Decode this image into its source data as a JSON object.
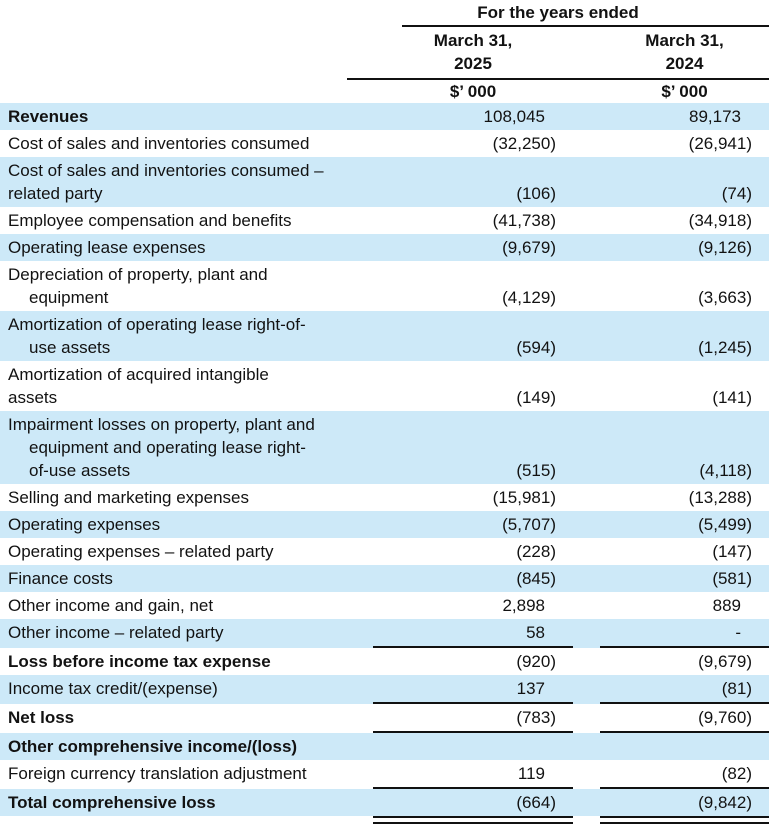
{
  "header": {
    "years_ended": "For the years ended",
    "col1_date": "March 31,\n2025",
    "col2_date": "March 31,\n2024",
    "col1_units": "$’ 000",
    "col2_units": "$’ 000"
  },
  "colors": {
    "row_shade_blue": "#cde9f8",
    "rule_black": "#111111",
    "text": "#121212"
  },
  "rows": [
    {
      "label": "Revenues",
      "v2025": "108,045",
      "v2024": "89,173"
    },
    {
      "label": "Cost of sales and inventories consumed",
      "v2025": "(32,250)",
      "v2024": "(26,941)"
    },
    {
      "label": "Cost of sales and inventories consumed –\nrelated party",
      "v2025": "(106)",
      "v2024": "(74)"
    },
    {
      "label": "Employee compensation and benefits",
      "v2025": "(41,738)",
      "v2024": "(34,918)"
    },
    {
      "label": "Operating lease expenses",
      "v2025": "(9,679)",
      "v2024": "(9,126)"
    },
    {
      "label": "Depreciation of property, plant and\nequipment",
      "v2025": "(4,129)",
      "v2024": "(3,663)"
    },
    {
      "label": "Amortization of operating lease right-of-\nuse assets",
      "v2025": "(594)",
      "v2024": "(1,245)"
    },
    {
      "label": "Amortization of acquired intangible\nassets",
      "v2025": "(149)",
      "v2024": "(141)"
    },
    {
      "label": "Impairment losses on property, plant and\nequipment and operating lease right-\nof-use assets",
      "v2025": "(515)",
      "v2024": "(4,118)"
    },
    {
      "label": "Selling and marketing expenses",
      "v2025": "(15,981)",
      "v2024": "(13,288)"
    },
    {
      "label": "Operating expenses",
      "v2025": "(5,707)",
      "v2024": "(5,499)"
    },
    {
      "label": "Operating expenses – related party",
      "v2025": "(228)",
      "v2024": "(147)"
    },
    {
      "label": "Finance costs",
      "v2025": "(845)",
      "v2024": "(581)"
    },
    {
      "label": "Other income and gain, net",
      "v2025": "2,898",
      "v2024": "889"
    },
    {
      "label": "Other income – related party",
      "v2025": "58",
      "v2024": "-"
    },
    {
      "label": "Loss before income tax expense",
      "v2025": "(920)",
      "v2024": "(9,679)"
    },
    {
      "label": "Income tax credit/(expense)",
      "v2025": "137",
      "v2024": "(81)"
    },
    {
      "label": "Net loss",
      "v2025": "(783)",
      "v2024": "(9,760)"
    },
    {
      "label": "Other comprehensive income/(loss)",
      "v2025": "",
      "v2024": ""
    },
    {
      "label": "Foreign currency translation adjustment",
      "v2025": "119",
      "v2024": "(82)"
    },
    {
      "label": "Total comprehensive loss",
      "v2025": "(664)",
      "v2024": "(9,842)"
    }
  ]
}
